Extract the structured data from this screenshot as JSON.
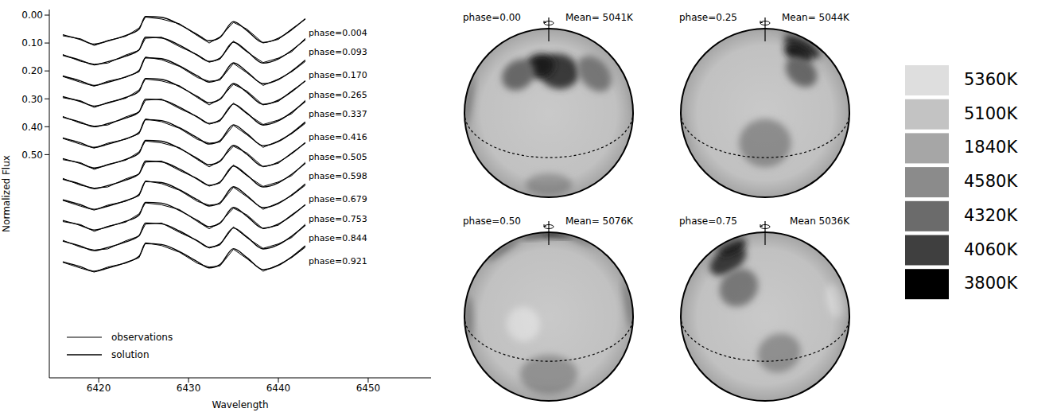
{
  "chart_data": [
    {
      "type": "line",
      "x_label": "Wavelength",
      "y_label": "Normalized Flux",
      "xlim": [
        6414.5,
        6457
      ],
      "ylim": [
        1.3,
        -0.02
      ],
      "xticks": [
        6420,
        6430,
        6440,
        6450
      ],
      "yticks": [
        {
          "value": 0,
          "label": "0.00"
        },
        {
          "value": 0.1,
          "label": "0.10"
        },
        {
          "value": 0.2,
          "label": "0.20"
        },
        {
          "value": 0.3,
          "label": "0.30"
        },
        {
          "value": 0.4,
          "label": "0.40"
        },
        {
          "value": 0.5,
          "label": "0.50"
        }
      ],
      "color": "#000000",
      "legend": "lower left",
      "legend_entries": [
        "observations",
        "solution"
      ],
      "x": [
        6416,
        6418,
        6419.5,
        6421,
        6423,
        6424.5,
        6425.2,
        6427,
        6429,
        6431,
        6432.3,
        6433.5,
        6435,
        6436.5,
        6438.3,
        6440,
        6441.5,
        6443
      ],
      "series": [
        {
          "name": "phase=0.004",
          "observations": [
            0.074,
            0.085,
            0.109,
            0.091,
            0.076,
            0.046,
            0.007,
            0.014,
            0.031,
            0.074,
            0.1,
            0.078,
            0.026,
            0.05,
            0.1,
            0.087,
            0.049,
            0.015
          ],
          "solution": [
            0.07,
            0.088,
            0.104,
            0.093,
            0.073,
            0.05,
            0.005,
            0.008,
            0.034,
            0.07,
            0.092,
            0.08,
            0.023,
            0.055,
            0.098,
            0.083,
            0.052,
            0.013
          ]
        },
        {
          "name": "phase=0.093",
          "observations": [
            0.141,
            0.166,
            0.176,
            0.172,
            0.143,
            0.126,
            0.083,
            0.079,
            0.113,
            0.142,
            0.169,
            0.158,
            0.093,
            0.132,
            0.17,
            0.154,
            0.131,
            0.083
          ],
          "solution": [
            0.144,
            0.162,
            0.178,
            0.167,
            0.147,
            0.124,
            0.079,
            0.082,
            0.108,
            0.144,
            0.166,
            0.154,
            0.097,
            0.129,
            0.172,
            0.157,
            0.126,
            0.087
          ]
        },
        {
          "name": "phase=0.170",
          "observations": [
            0.22,
            0.241,
            0.255,
            0.237,
            0.223,
            0.203,
            0.15,
            0.16,
            0.184,
            0.224,
            0.237,
            0.233,
            0.173,
            0.207,
            0.252,
            0.229,
            0.203,
            0.166
          ],
          "solution": [
            0.218,
            0.236,
            0.252,
            0.241,
            0.221,
            0.198,
            0.153,
            0.156,
            0.182,
            0.218,
            0.24,
            0.228,
            0.171,
            0.203,
            0.246,
            0.231,
            0.2,
            0.161
          ]
        },
        {
          "name": "phase=0.265",
          "observations": [
            0.296,
            0.307,
            0.331,
            0.313,
            0.298,
            0.268,
            0.229,
            0.236,
            0.253,
            0.296,
            0.322,
            0.3,
            0.248,
            0.272,
            0.322,
            0.309,
            0.271,
            0.237
          ],
          "solution": [
            0.292,
            0.31,
            0.326,
            0.315,
            0.295,
            0.272,
            0.227,
            0.23,
            0.256,
            0.292,
            0.314,
            0.302,
            0.245,
            0.277,
            0.32,
            0.305,
            0.274,
            0.235
          ]
        },
        {
          "name": "phase=0.337",
          "observations": [
            0.363,
            0.388,
            0.398,
            0.394,
            0.365,
            0.348,
            0.305,
            0.301,
            0.335,
            0.364,
            0.391,
            0.38,
            0.315,
            0.354,
            0.392,
            0.376,
            0.353,
            0.305
          ],
          "solution": [
            0.366,
            0.384,
            0.4,
            0.389,
            0.369,
            0.346,
            0.301,
            0.304,
            0.33,
            0.366,
            0.388,
            0.376,
            0.319,
            0.351,
            0.394,
            0.379,
            0.348,
            0.309
          ]
        },
        {
          "name": "phase=0.416",
          "observations": [
            0.442,
            0.463,
            0.477,
            0.459,
            0.445,
            0.425,
            0.372,
            0.382,
            0.406,
            0.446,
            0.459,
            0.455,
            0.395,
            0.429,
            0.474,
            0.451,
            0.425,
            0.388
          ],
          "solution": [
            0.44,
            0.458,
            0.474,
            0.463,
            0.443,
            0.42,
            0.375,
            0.378,
            0.404,
            0.44,
            0.462,
            0.45,
            0.393,
            0.425,
            0.468,
            0.453,
            0.422,
            0.383
          ]
        },
        {
          "name": "phase=0.505",
          "observations": [
            0.518,
            0.529,
            0.553,
            0.535,
            0.52,
            0.49,
            0.451,
            0.458,
            0.475,
            0.518,
            0.544,
            0.522,
            0.47,
            0.494,
            0.544,
            0.531,
            0.493,
            0.459
          ],
          "solution": [
            0.514,
            0.532,
            0.548,
            0.537,
            0.517,
            0.494,
            0.449,
            0.452,
            0.478,
            0.514,
            0.536,
            0.524,
            0.467,
            0.499,
            0.542,
            0.527,
            0.496,
            0.457
          ]
        },
        {
          "name": "phase=0.598",
          "observations": [
            0.585,
            0.61,
            0.62,
            0.616,
            0.587,
            0.57,
            0.527,
            0.523,
            0.557,
            0.586,
            0.613,
            0.602,
            0.537,
            0.576,
            0.614,
            0.598,
            0.575,
            0.527
          ],
          "solution": [
            0.588,
            0.606,
            0.622,
            0.611,
            0.591,
            0.568,
            0.523,
            0.526,
            0.552,
            0.588,
            0.61,
            0.598,
            0.541,
            0.573,
            0.616,
            0.601,
            0.57,
            0.531
          ]
        },
        {
          "name": "phase=0.679",
          "observations": [
            0.664,
            0.685,
            0.699,
            0.681,
            0.667,
            0.647,
            0.594,
            0.604,
            0.628,
            0.668,
            0.681,
            0.677,
            0.617,
            0.651,
            0.696,
            0.673,
            0.647,
            0.61
          ],
          "solution": [
            0.662,
            0.68,
            0.696,
            0.685,
            0.665,
            0.642,
            0.597,
            0.6,
            0.626,
            0.662,
            0.684,
            0.672,
            0.615,
            0.647,
            0.69,
            0.675,
            0.644,
            0.605
          ]
        },
        {
          "name": "phase=0.753",
          "observations": [
            0.74,
            0.751,
            0.775,
            0.757,
            0.742,
            0.712,
            0.673,
            0.68,
            0.697,
            0.74,
            0.766,
            0.744,
            0.692,
            0.716,
            0.766,
            0.753,
            0.715,
            0.681
          ],
          "solution": [
            0.736,
            0.754,
            0.77,
            0.759,
            0.739,
            0.716,
            0.671,
            0.674,
            0.7,
            0.736,
            0.758,
            0.746,
            0.689,
            0.721,
            0.764,
            0.749,
            0.718,
            0.679
          ]
        },
        {
          "name": "phase=0.844",
          "observations": [
            0.807,
            0.832,
            0.842,
            0.838,
            0.809,
            0.792,
            0.749,
            0.745,
            0.779,
            0.808,
            0.835,
            0.824,
            0.759,
            0.798,
            0.836,
            0.82,
            0.797,
            0.749
          ],
          "solution": [
            0.81,
            0.828,
            0.844,
            0.833,
            0.813,
            0.79,
            0.745,
            0.748,
            0.774,
            0.81,
            0.832,
            0.82,
            0.763,
            0.795,
            0.838,
            0.823,
            0.792,
            0.753
          ]
        },
        {
          "name": "phase=0.921",
          "observations": [
            0.886,
            0.907,
            0.921,
            0.903,
            0.889,
            0.869,
            0.816,
            0.826,
            0.85,
            0.89,
            0.903,
            0.899,
            0.839,
            0.873,
            0.918,
            0.895,
            0.869,
            0.832
          ],
          "solution": [
            0.884,
            0.902,
            0.918,
            0.907,
            0.887,
            0.864,
            0.819,
            0.822,
            0.848,
            0.884,
            0.906,
            0.894,
            0.837,
            0.869,
            0.912,
            0.897,
            0.866,
            0.827
          ]
        }
      ]
    },
    {
      "type": "map",
      "inclination": 58,
      "background_color": "#c9c9c9",
      "panels": [
        {
          "title": "phase=0.00",
          "phase": 0,
          "mean": "Mean= 5041K"
        },
        {
          "title": "phase=0.25",
          "phase": 0.25,
          "mean": "Mean= 5044K"
        },
        {
          "title": "phase=0.50",
          "phase": 0.5,
          "mean": "Mean= 5076K"
        },
        {
          "title": "phase=0.75",
          "phase": 0.75,
          "mean": "Mean 5036K"
        }
      ],
      "spots": [
        {
          "lat": 62,
          "lon": 345,
          "radius": 14,
          "color": "#3a3a3a"
        },
        {
          "lat": 66,
          "lon": 15,
          "radius": 10,
          "color": "#1a1a1a"
        },
        {
          "lat": 55,
          "lon": 40,
          "radius": 12,
          "color": "#6b6b6b"
        },
        {
          "lat": 50,
          "lon": 300,
          "radius": 14,
          "color": "#7a7a7a"
        },
        {
          "lat": 10,
          "lon": 90,
          "radius": 18,
          "color": "#8e8e8e"
        },
        {
          "lat": -15,
          "lon": 180,
          "radius": 20,
          "color": "#969696"
        },
        {
          "lat": 5,
          "lon": 260,
          "radius": 15,
          "color": "#929292"
        },
        {
          "lat": -30,
          "lon": 0,
          "radius": 16,
          "color": "#9a9a9a"
        },
        {
          "lat": 25,
          "lon": 200,
          "radius": 12,
          "color": "#dedede"
        }
      ],
      "color_scale": {
        "labels": [
          "5360K",
          "5100K",
          "1840K",
          "4580K",
          "4320K",
          "4060K",
          "3800K"
        ],
        "colors": [
          "#dedede",
          "#c3c3c3",
          "#a6a6a6",
          "#8b8b8b",
          "#6b6b6b",
          "#3f3f3f",
          "#000000"
        ]
      }
    }
  ]
}
